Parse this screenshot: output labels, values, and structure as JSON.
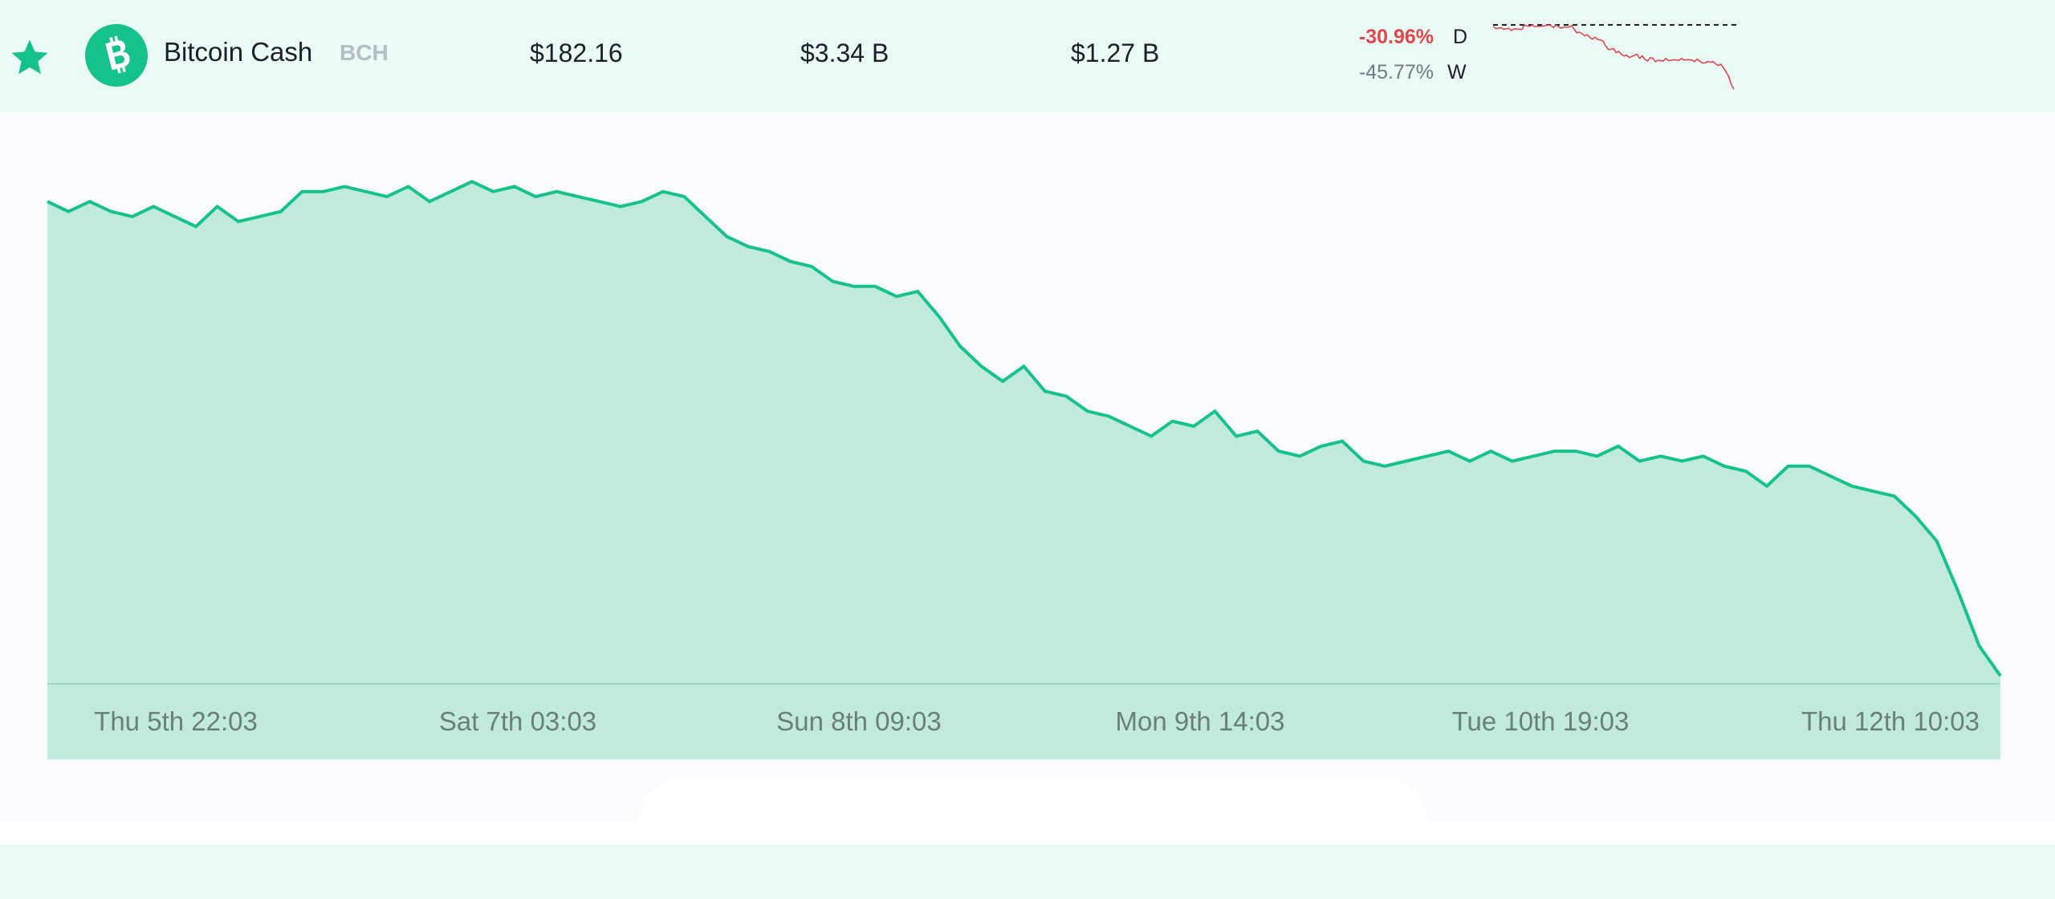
{
  "coin": {
    "name": "Bitcoin Cash",
    "symbol": "BCH",
    "price": "$182.16",
    "market_cap": "$3.34 B",
    "volume": "$1.27 B",
    "change_d": "-30.96%",
    "label_d": "D",
    "change_w": "-45.77%",
    "label_w": "W"
  },
  "icons": {
    "favorite": "star-icon",
    "logo": "bitcoin-cash-logo-icon"
  },
  "colors": {
    "accent": "#16c28c",
    "row_bg": "#eafbf5",
    "area_fill": "#c0eadc",
    "negative": "#e0474c"
  },
  "chart_data": {
    "type": "area",
    "x_tick_labels": [
      "Thu 5th 22:03",
      "Sat 7th 03:03",
      "Sun 8th 09:03",
      "Mon 9th 14:03",
      "Tue 10th 19:03",
      "Thu 12th 10:03"
    ],
    "y_relative": [
      0.05,
      0.07,
      0.05,
      0.07,
      0.08,
      0.06,
      0.08,
      0.1,
      0.06,
      0.09,
      0.08,
      0.07,
      0.03,
      0.03,
      0.02,
      0.03,
      0.04,
      0.02,
      0.05,
      0.03,
      0.01,
      0.03,
      0.02,
      0.04,
      0.03,
      0.04,
      0.05,
      0.06,
      0.05,
      0.03,
      0.04,
      0.08,
      0.12,
      0.14,
      0.15,
      0.17,
      0.18,
      0.21,
      0.22,
      0.22,
      0.24,
      0.23,
      0.28,
      0.34,
      0.38,
      0.41,
      0.38,
      0.43,
      0.44,
      0.47,
      0.48,
      0.5,
      0.52,
      0.49,
      0.5,
      0.47,
      0.52,
      0.51,
      0.55,
      0.56,
      0.54,
      0.53,
      0.57,
      0.58,
      0.57,
      0.56,
      0.55,
      0.57,
      0.55,
      0.57,
      0.56,
      0.55,
      0.55,
      0.56,
      0.54,
      0.57,
      0.56,
      0.57,
      0.56,
      0.58,
      0.59,
      0.62,
      0.58,
      0.58,
      0.6,
      0.62,
      0.63,
      0.64,
      0.68,
      0.73,
      0.83,
      0.94,
      1.0
    ],
    "y_axis_shown": false,
    "grid": false
  }
}
